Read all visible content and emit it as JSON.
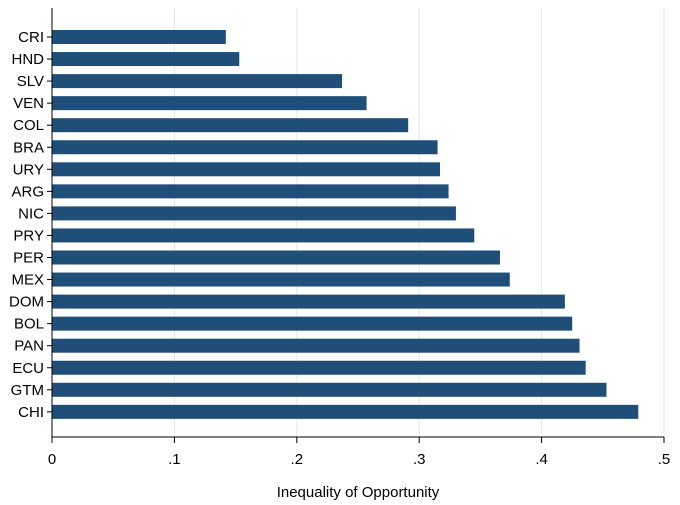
{
  "chart_data": {
    "type": "bar",
    "orientation": "horizontal",
    "categories": [
      "CRI",
      "HND",
      "SLV",
      "VEN",
      "COL",
      "BRA",
      "URY",
      "ARG",
      "NIC",
      "PRY",
      "PER",
      "MEX",
      "DOM",
      "BOL",
      "PAN",
      "ECU",
      "GTM",
      "CHI"
    ],
    "values": [
      0.142,
      0.153,
      0.237,
      0.257,
      0.291,
      0.315,
      0.317,
      0.324,
      0.33,
      0.345,
      0.366,
      0.374,
      0.419,
      0.425,
      0.431,
      0.436,
      0.453,
      0.479
    ],
    "xlabel": "Inequality of Opportunity",
    "xlim": [
      0,
      0.5
    ],
    "xticks": [
      0,
      0.1,
      0.2,
      0.3,
      0.4,
      0.5
    ],
    "xtick_labels": [
      "0",
      ".1",
      ".2",
      ".3",
      ".4",
      ".5"
    ],
    "grid": "vertical",
    "bar_color": "#1f4e79",
    "grid_color": "#e6e6e6"
  }
}
